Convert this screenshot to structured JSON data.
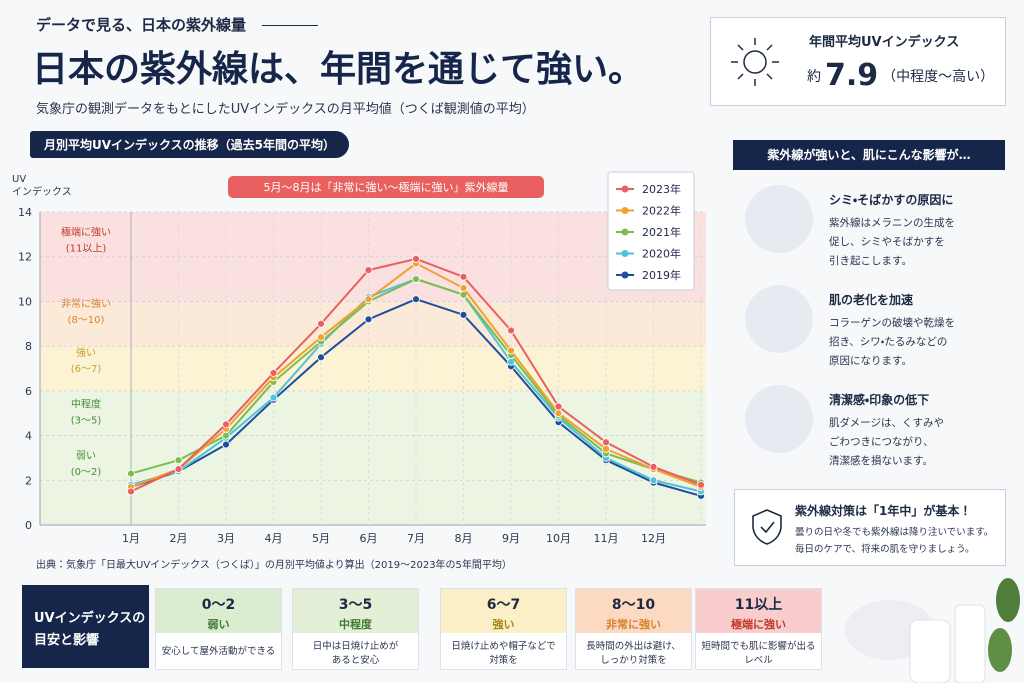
{
  "header": {
    "kicker": "データで見る、日本の紫外線量",
    "title": "日本の紫外線は、年間を通じて強い。",
    "subtitle": "気象庁の観測データをもとにしたUVインデックスの月平均値（つくば観測値の平均）"
  },
  "chart_data": {
    "type": "line",
    "title": "月別平均UVインデックスの推移（過去5年間の平均）",
    "y_label": [
      "UV",
      "インデックス"
    ],
    "annotation": "5月〜8月は「非常に強い〜極端に強い」紫外線量",
    "categories": [
      "1月",
      "2月",
      "3月",
      "4月",
      "5月",
      "6月",
      "7月",
      "8月",
      "9月",
      "10月",
      "11月",
      "12月",
      null
    ],
    "series": [
      {
        "name": "2023年",
        "color": "#e8605f",
        "values": [
          1.5,
          2.5,
          4.5,
          6.8,
          9.0,
          11.4,
          11.9,
          11.1,
          8.7,
          5.3,
          3.7,
          2.6,
          1.8
        ]
      },
      {
        "name": "2022年",
        "color": "#f0a030",
        "values": [
          1.7,
          2.5,
          4.3,
          6.6,
          8.4,
          10.1,
          11.7,
          10.6,
          7.8,
          5.0,
          3.4,
          2.5,
          1.7
        ]
      },
      {
        "name": "2021年",
        "color": "#7cbc50",
        "values": [
          2.3,
          2.9,
          4.0,
          6.4,
          8.2,
          10.0,
          11.0,
          10.3,
          7.6,
          4.9,
          3.2,
          2.5,
          1.9
        ]
      },
      {
        "name": "2020年",
        "color": "#4fc3d8",
        "values": [
          1.8,
          2.4,
          3.9,
          5.7,
          8.1,
          10.2,
          11.0,
          10.3,
          7.3,
          4.8,
          3.0,
          2.0,
          1.5
        ]
      },
      {
        "name": "2019年",
        "color": "#1f4e9c",
        "values": [
          1.7,
          2.4,
          3.6,
          5.6,
          7.5,
          9.2,
          10.1,
          9.4,
          7.1,
          4.6,
          2.9,
          1.9,
          1.3
        ]
      }
    ],
    "ylim": [
      0,
      14
    ],
    "yticks": [
      0,
      2,
      4,
      6,
      8,
      10,
      12,
      14
    ],
    "grid": true,
    "legend": "top-right",
    "bands": [
      {
        "from": 10,
        "to": 14,
        "color": "#fbd9d9",
        "label": "極端に強い",
        "range": "(11以上)",
        "label_color": "#c0392b"
      },
      {
        "from": 8,
        "to": 10,
        "color": "#fde6cf",
        "label": "非常に強い",
        "range": "(8〜10)",
        "label_color": "#d9822b"
      },
      {
        "from": 6,
        "to": 8,
        "color": "#fdf1cc",
        "label": "強い",
        "range": "(6〜7)",
        "label_color": "#c9a227"
      },
      {
        "from": 0,
        "to": 6,
        "color": "#e8f2dc",
        "label": "中程度",
        "range": "(3〜5)",
        "label_color": "#4a8a3a"
      }
    ],
    "weak_label": {
      "label": "弱い",
      "range": "(0〜2)"
    }
  },
  "source": "出典：気象庁「日最大UVインデックス（つくば）」の月別平均値より算出（2019〜2023年の5年間平均）",
  "annual": {
    "title": "年間平均UVインデックス",
    "prefix": "約",
    "value": 7.9,
    "note": "（中程度〜高い）"
  },
  "effects": {
    "title": "紫外線が強いと、肌にこんな影響が…",
    "items": [
      {
        "title": "シミ・そばかすの原因に",
        "lines": [
          "紫外線はメラニンの生成を",
          "促し、シミやそばかすを",
          "引き起こします。"
        ]
      },
      {
        "title": "肌の老化を加速",
        "lines": [
          "コラーゲンの破壊や乾燥を",
          "招き、シワ・たるみなどの",
          "原因になります。"
        ]
      },
      {
        "title": "清潔感・印象の低下",
        "lines": [
          "肌ダメージは、くすみや",
          "ごわつきにつながり、",
          "清潔感を損ないます。"
        ]
      }
    ]
  },
  "care": {
    "title": "紫外線対策は「1年中」が基本！",
    "lines": [
      "曇りの日や冬でも紫外線は降り注いでいます。",
      "毎日のケアで、将来の肌を守りましょう。"
    ]
  },
  "guide": {
    "title": [
      "UVインデックスの",
      "目安と影響"
    ],
    "cards": [
      {
        "range": "0〜2",
        "level": "弱い",
        "lines": [
          "安心して屋外活動ができる"
        ]
      },
      {
        "range": "3〜5",
        "level": "中程度",
        "lines": [
          "日中は日焼け止めが",
          "あると安心"
        ]
      },
      {
        "range": "6〜7",
        "level": "強い",
        "lines": [
          "日焼け止めや帽子などで",
          "対策を"
        ]
      },
      {
        "range": "8〜10",
        "level": "非常に強い",
        "lines": [
          "長時間の外出は避け、",
          "しっかり対策を"
        ]
      },
      {
        "range": "11以上",
        "level": "極端に強い",
        "lines": [
          "短時間でも肌に影響が出る",
          "レベル"
        ]
      }
    ]
  }
}
